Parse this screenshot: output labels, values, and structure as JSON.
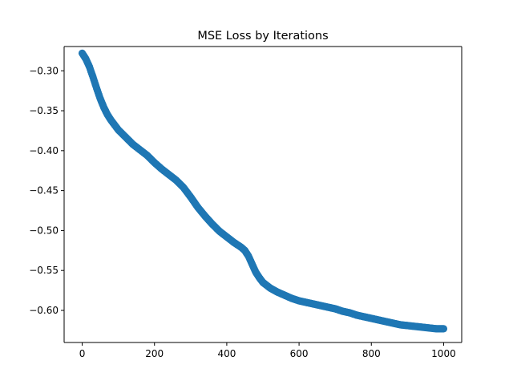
{
  "chart_data": {
    "type": "scatter",
    "title": "MSE Loss by Iterations",
    "xlabel": "",
    "ylabel": "",
    "xlim": [
      -50,
      1050
    ],
    "ylim": [
      -0.6402,
      -0.2696
    ],
    "x_ticks": [
      0,
      200,
      400,
      600,
      800,
      1000
    ],
    "x_tick_labels": [
      "0",
      "200",
      "400",
      "600",
      "800",
      "1000"
    ],
    "y_ticks": [
      -0.3,
      -0.35,
      -0.4,
      -0.45,
      -0.5,
      -0.55,
      -0.6
    ],
    "y_tick_labels": [
      "−0.30",
      "−0.35",
      "−0.40",
      "−0.45",
      "−0.50",
      "−0.55",
      "−0.60"
    ],
    "grid": false,
    "legend": "none",
    "marker_color": "#1f77b4",
    "series": [
      {
        "x": [
          0,
          10,
          20,
          30,
          40,
          50,
          60,
          70,
          80,
          90,
          100,
          120,
          140,
          160,
          180,
          200,
          220,
          240,
          260,
          280,
          300,
          320,
          340,
          360,
          380,
          400,
          420,
          440,
          450,
          460,
          470,
          480,
          490,
          500,
          520,
          540,
          560,
          580,
          600,
          620,
          640,
          660,
          680,
          700,
          720,
          740,
          760,
          780,
          800,
          820,
          840,
          860,
          880,
          900,
          920,
          940,
          960,
          980,
          1000
        ],
        "y": [
          -0.278,
          -0.285,
          -0.295,
          -0.308,
          -0.322,
          -0.335,
          -0.346,
          -0.355,
          -0.362,
          -0.368,
          -0.374,
          -0.383,
          -0.392,
          -0.399,
          -0.406,
          -0.415,
          -0.423,
          -0.43,
          -0.437,
          -0.446,
          -0.458,
          -0.471,
          -0.482,
          -0.492,
          -0.501,
          -0.508,
          -0.515,
          -0.521,
          -0.525,
          -0.532,
          -0.542,
          -0.552,
          -0.559,
          -0.565,
          -0.572,
          -0.577,
          -0.581,
          -0.585,
          -0.588,
          -0.59,
          -0.592,
          -0.594,
          -0.596,
          -0.598,
          -0.601,
          -0.603,
          -0.606,
          -0.608,
          -0.61,
          -0.612,
          -0.614,
          -0.616,
          -0.618,
          -0.619,
          -0.62,
          -0.621,
          -0.622,
          -0.623,
          -0.623
        ]
      }
    ]
  }
}
